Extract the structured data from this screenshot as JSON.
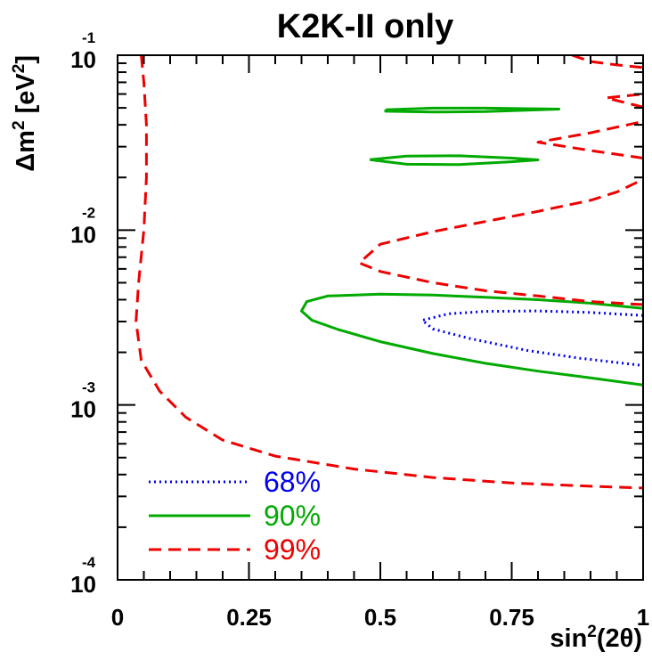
{
  "chart_data": {
    "type": "contour",
    "title": "K2K-II only",
    "xlabel": "sin²(2θ)",
    "xlabel_parts": {
      "pre": "sin",
      "sup": "2",
      "post": "(2θ)"
    },
    "ylabel": "Δm² [eV²]",
    "ylabel_parts": {
      "a": "Δm",
      "b": "2",
      "c": " [eV",
      "d": "2",
      "e": "]"
    },
    "xlim": [
      0,
      1
    ],
    "ylim": [
      0.0001,
      0.1
    ],
    "yscale": "log",
    "x_ticks": [
      {
        "value": 0,
        "label": "0"
      },
      {
        "value": 0.25,
        "label": "0.25"
      },
      {
        "value": 0.5,
        "label": "0.5"
      },
      {
        "value": 0.75,
        "label": "0.75"
      },
      {
        "value": 1,
        "label": "1"
      }
    ],
    "y_ticks": [
      {
        "value": 0.1,
        "base": "10",
        "exp": "-1"
      },
      {
        "value": 0.01,
        "base": "10",
        "exp": "-2"
      },
      {
        "value": 0.001,
        "base": "10",
        "exp": "-3"
      },
      {
        "value": 0.0001,
        "base": "10",
        "exp": "-4"
      }
    ],
    "legend_position": "bottom-left",
    "series": [
      {
        "name": "68%",
        "color": "#0000ee",
        "style": "dotted",
        "segments": [
          [
            [
              1.0,
              0.00325
            ],
            [
              0.9,
              0.00338
            ],
            [
              0.8,
              0.00345
            ],
            [
              0.7,
              0.00343
            ],
            [
              0.63,
              0.00332
            ],
            [
              0.58,
              0.00305
            ],
            [
              0.6,
              0.00272
            ],
            [
              0.67,
              0.0024
            ],
            [
              0.78,
              0.00205
            ],
            [
              0.88,
              0.00185
            ],
            [
              1.0,
              0.00168
            ]
          ]
        ]
      },
      {
        "name": "90%",
        "color": "#00aa00",
        "style": "solid",
        "segments": [
          [
            [
              1.0,
              0.00357
            ],
            [
              0.9,
              0.00382
            ],
            [
              0.8,
              0.004
            ],
            [
              0.7,
              0.00413
            ],
            [
              0.6,
              0.00425
            ],
            [
              0.5,
              0.0043
            ],
            [
              0.4,
              0.0042
            ],
            [
              0.36,
              0.0039
            ],
            [
              0.35,
              0.00345
            ],
            [
              0.37,
              0.00305
            ],
            [
              0.42,
              0.0027
            ],
            [
              0.5,
              0.0023
            ],
            [
              0.6,
              0.00197
            ],
            [
              0.7,
              0.00173
            ],
            [
              0.8,
              0.00156
            ],
            [
              0.9,
              0.00143
            ],
            [
              1.0,
              0.0013
            ]
          ],
          [
            [
              0.51,
              0.0488
            ],
            [
              0.6,
              0.0498
            ],
            [
              0.7,
              0.0498
            ],
            [
              0.84,
              0.0492
            ],
            [
              0.7,
              0.0476
            ],
            [
              0.6,
              0.0473
            ],
            [
              0.51,
              0.0478
            ],
            [
              0.51,
              0.0488
            ]
          ],
          [
            [
              0.48,
              0.0253
            ],
            [
              0.55,
              0.0265
            ],
            [
              0.65,
              0.0266
            ],
            [
              0.75,
              0.0258
            ],
            [
              0.8,
              0.0252
            ],
            [
              0.75,
              0.0246
            ],
            [
              0.65,
              0.0237
            ],
            [
              0.55,
              0.0238
            ],
            [
              0.48,
              0.0253
            ]
          ]
        ]
      },
      {
        "name": "99%",
        "color": "#ee0000",
        "style": "dashed",
        "segments": [
          [
            [
              0.045,
              0.1
            ],
            [
              0.05,
              0.07
            ],
            [
              0.055,
              0.04
            ],
            [
              0.055,
              0.02
            ],
            [
              0.05,
              0.01
            ],
            [
              0.04,
              0.005
            ],
            [
              0.035,
              0.003
            ],
            [
              0.045,
              0.0018
            ],
            [
              0.08,
              0.0012
            ],
            [
              0.13,
              0.00085
            ],
            [
              0.2,
              0.00063
            ],
            [
              0.3,
              0.00051
            ],
            [
              0.45,
              0.00043
            ],
            [
              0.6,
              0.000385
            ],
            [
              0.75,
              0.000358
            ],
            [
              0.9,
              0.000343
            ],
            [
              1.0,
              0.000335
            ]
          ],
          [
            [
              1.0,
              0.00375
            ],
            [
              0.9,
              0.0039
            ],
            [
              0.8,
              0.0042
            ],
            [
              0.7,
              0.0045
            ],
            [
              0.6,
              0.005
            ],
            [
              0.5,
              0.0058
            ],
            [
              0.46,
              0.0065
            ],
            [
              0.5,
              0.0083
            ],
            [
              0.6,
              0.0098
            ],
            [
              0.7,
              0.0112
            ],
            [
              0.8,
              0.0128
            ],
            [
              0.9,
              0.0148
            ],
            [
              0.95,
              0.0165
            ],
            [
              1.0,
              0.0195
            ]
          ],
          [
            [
              1.0,
              0.0258
            ],
            [
              0.9,
              0.0285
            ],
            [
              0.8,
              0.0318
            ],
            [
              0.9,
              0.036
            ],
            [
              1.0,
              0.0418
            ]
          ],
          [
            [
              1.0,
              0.0505
            ],
            [
              0.93,
              0.057
            ],
            [
              1.0,
              0.06
            ]
          ],
          [
            [
              0.865,
              0.1
            ],
            [
              0.9,
              0.092
            ],
            [
              0.95,
              0.088
            ],
            [
              1.0,
              0.085
            ]
          ]
        ]
      }
    ]
  }
}
